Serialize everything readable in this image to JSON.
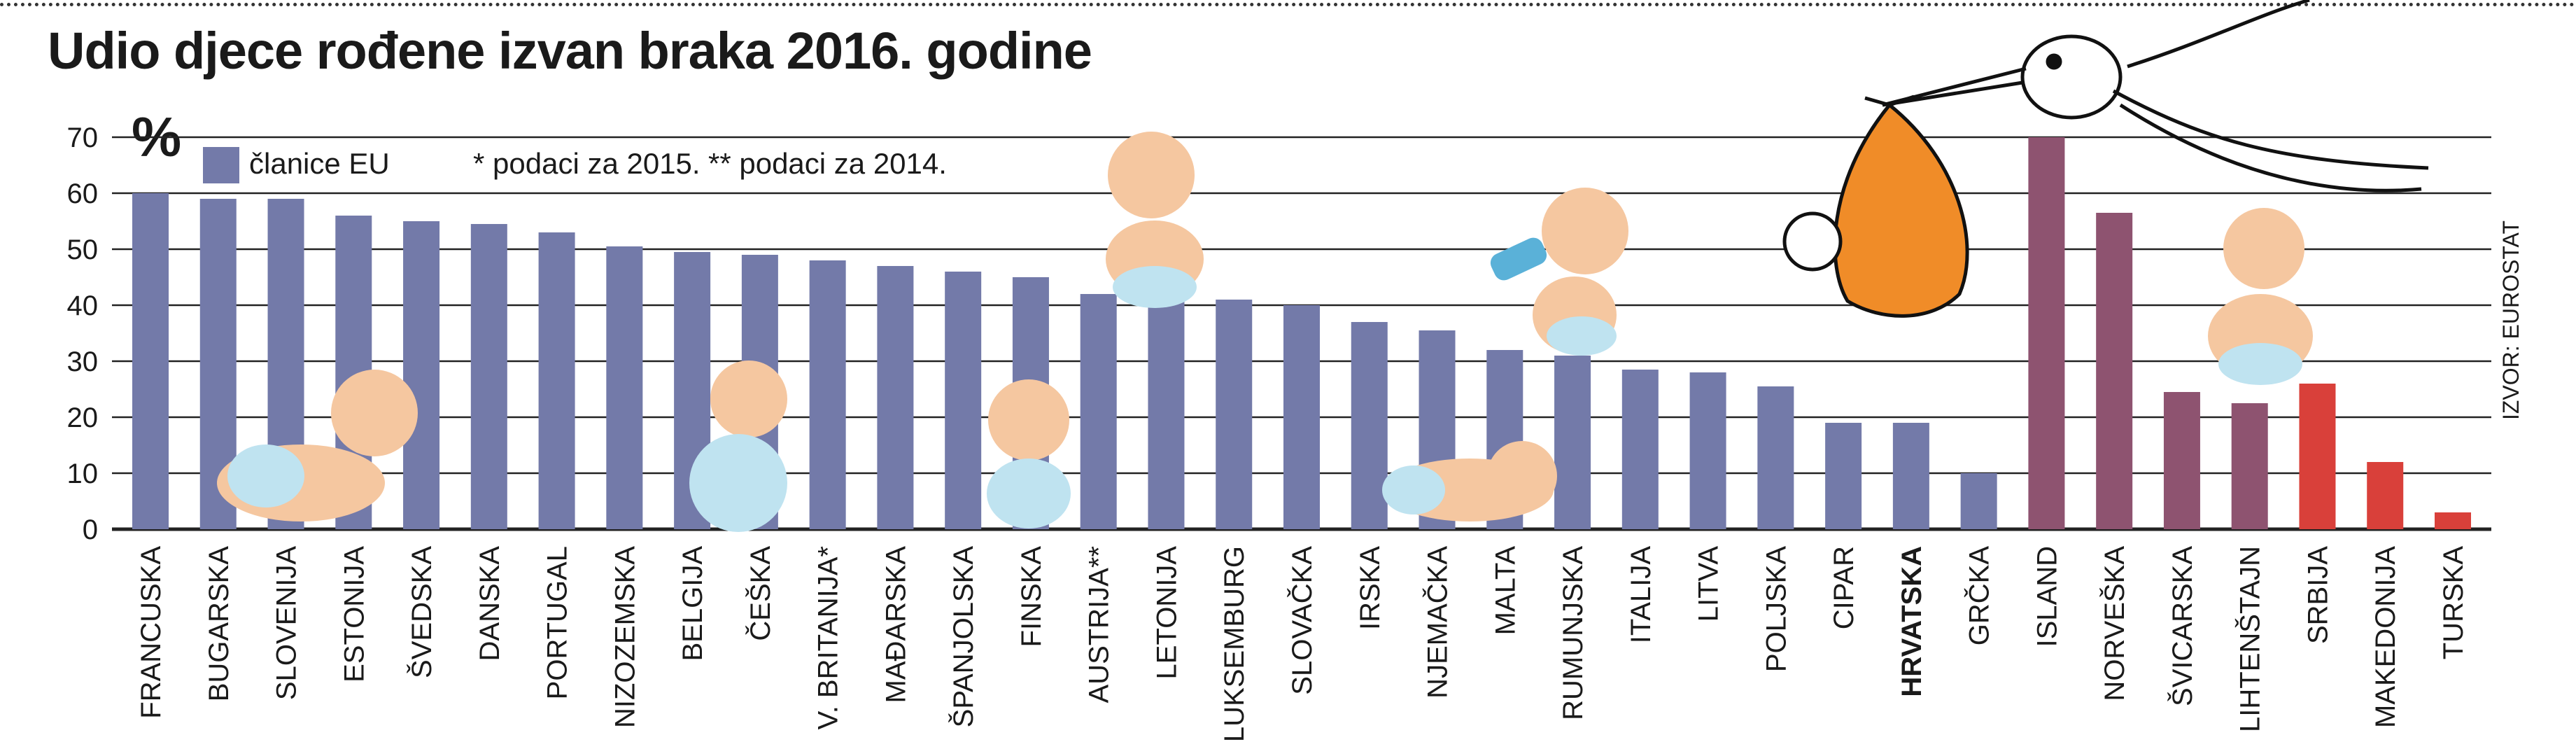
{
  "header": {
    "title": "Udio djece rođene izvan braka 2016. godine",
    "unit": "%"
  },
  "legend": {
    "eu_label": "članice EU",
    "note_2015": "* podaci za 2015.",
    "note_2014": "** podaci za 2014."
  },
  "source": "IZVOR: EUROSTAT",
  "colors": {
    "eu": "#737aa9",
    "non_eu": "#8e5370",
    "candidate": "#d9403a",
    "grid": "#222222"
  },
  "chart_data": {
    "type": "bar",
    "title": "Udio djece rođene izvan braka 2016. godine",
    "ylabel": "%",
    "xlabel": "",
    "ylim": [
      0,
      70
    ],
    "yticks": [
      0,
      10,
      20,
      30,
      40,
      50,
      60,
      70
    ],
    "grid": true,
    "legend": "top-left",
    "categories": [
      "FRANCUSKA",
      "BUGARSKA",
      "SLOVENIJA",
      "ESTONIJA",
      "ŠVEDSKA",
      "DANSKA",
      "PORTUGAL",
      "NIZOZEMSKA",
      "BELGIJA",
      "ČEŠKA",
      "V. BRITANIJA*",
      "MAĐARSKA",
      "ŠPANJOLSKA",
      "FINSKA",
      "AUSTRIJA**",
      "LETONIJA",
      "LUKSEMBURG",
      "SLOVAČKA",
      "IRSKA",
      "NJEMAČKA",
      "MALTA",
      "RUMUNJSKA",
      "ITALIJA",
      "LITVA",
      "POLJSKA",
      "CIPAR",
      "HRVATSKA",
      "GRČKA",
      "ISLAND",
      "NORVEŠKA",
      "ŠVICARSKA",
      "LIHTENŠTAJN",
      "SRBIJA",
      "MAKEDONIJA",
      "TURSKA"
    ],
    "values": [
      60,
      59,
      59,
      56,
      55,
      54.5,
      53,
      50.5,
      49.5,
      49,
      48,
      47,
      46,
      45,
      42,
      41,
      41,
      40,
      37,
      35.5,
      32,
      31,
      28.5,
      28,
      25.5,
      19,
      19,
      10,
      70,
      56.5,
      24.5,
      22.5,
      26,
      12,
      3
    ],
    "groups": [
      "eu",
      "eu",
      "eu",
      "eu",
      "eu",
      "eu",
      "eu",
      "eu",
      "eu",
      "eu",
      "eu",
      "eu",
      "eu",
      "eu",
      "eu",
      "eu",
      "eu",
      "eu",
      "eu",
      "eu",
      "eu",
      "eu",
      "eu",
      "eu",
      "eu",
      "eu",
      "eu",
      "eu",
      "non_eu",
      "non_eu",
      "non_eu",
      "non_eu",
      "candidate",
      "candidate",
      "candidate"
    ],
    "highlight": "HRVATSKA"
  }
}
